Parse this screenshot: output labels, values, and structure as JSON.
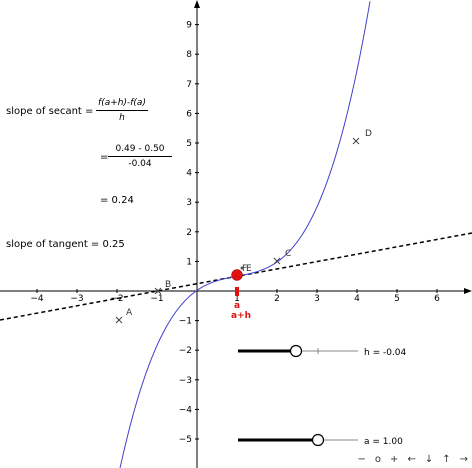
{
  "axes": {
    "x_ticks": [
      "−4",
      "−3",
      "−2",
      "−1",
      "1",
      "2",
      "3",
      "4",
      "5",
      "6"
    ],
    "y_ticks": [
      "9",
      "8",
      "7",
      "6",
      "5",
      "4",
      "3",
      "2",
      "1",
      "−1",
      "−2",
      "−3",
      "−4",
      "−5"
    ],
    "x_tick_values": [
      -4,
      -3,
      -2,
      -1,
      1,
      2,
      3,
      4,
      5,
      6
    ],
    "y_tick_values": [
      9,
      8,
      7,
      6,
      5,
      4,
      3,
      2,
      1,
      -1,
      -2,
      -3,
      -4,
      -5
    ]
  },
  "points": {
    "A": "A",
    "B": "B",
    "C": "C",
    "D": "D",
    "E": "E",
    "F": "F",
    "a_label": "a",
    "ah_label": "a+h"
  },
  "secant": {
    "label": "slope of secant =",
    "formula_num": "f(a+h)-f(a)",
    "formula_den": "h",
    "eq1": "=",
    "values_num": "0.49 - 0.50",
    "values_den": "-0.04",
    "result": "= 0.24"
  },
  "tangent": {
    "label": "slope of tangent = 0.25"
  },
  "sliders": {
    "h": {
      "label": "h = -0.04",
      "value": -0.04,
      "min": -1,
      "max": 1
    },
    "a": {
      "label": "a = 1.00",
      "value": 1.0,
      "min": -2,
      "max": 3
    }
  },
  "nav": {
    "minus": "−",
    "reset": "o",
    "plus": "+",
    "left": "←",
    "down": "↓",
    "up": "↑",
    "right": "→"
  },
  "colors": {
    "curve": "#4040cc",
    "point": "#e01010",
    "axis": "#000000"
  }
}
